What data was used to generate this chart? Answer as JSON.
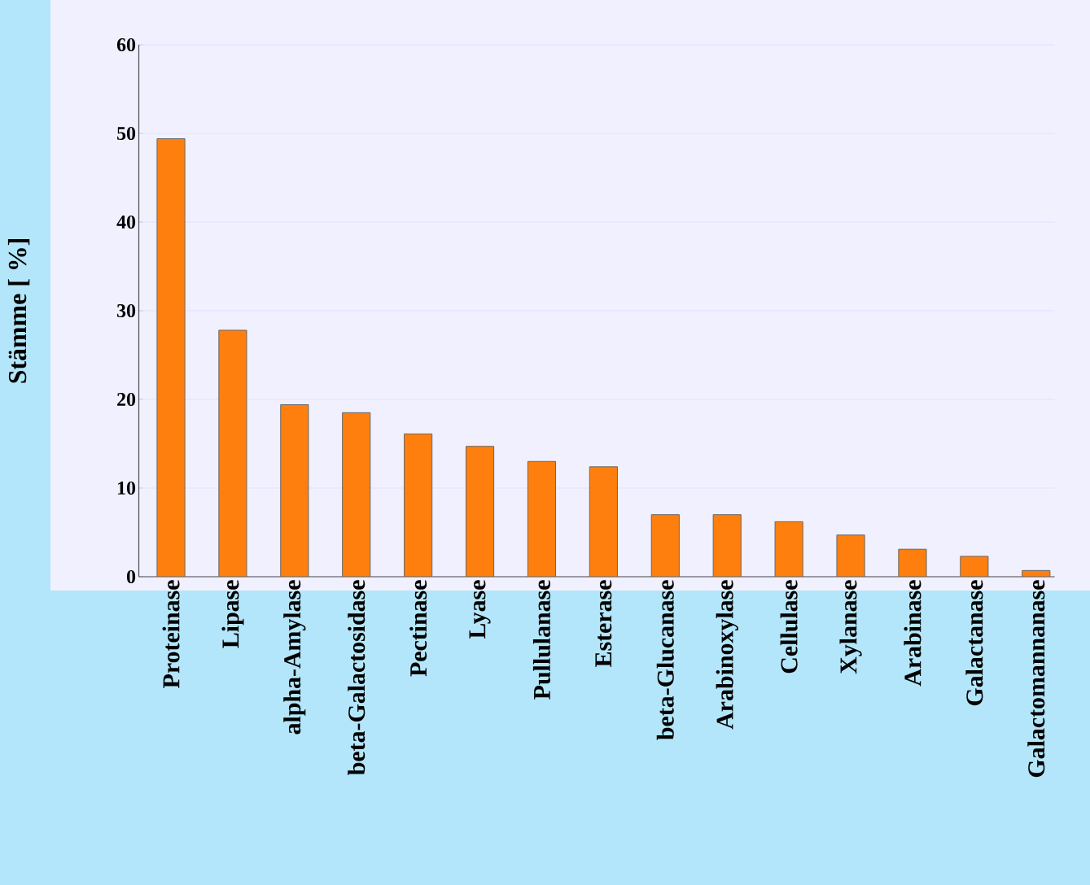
{
  "chart_data": {
    "type": "bar",
    "ylabel": "Stämme [ %]",
    "categories": [
      "Proteinase",
      "Lipase",
      "alpha-Amylase",
      "beta-Galactosidase",
      "Pectinase",
      "Lyase",
      "Pullulanase",
      "Esterase",
      "beta-Glucanase",
      "Arabinoxylase",
      "Cellulase",
      "Xylanase",
      "Arabinase",
      "Galactanase",
      "Galactomannanase"
    ],
    "values": [
      49.4,
      27.8,
      19.4,
      18.5,
      16.1,
      14.7,
      13.0,
      12.4,
      7.0,
      7.0,
      6.2,
      4.7,
      3.1,
      2.3,
      0.7
    ],
    "color": "#ff7f0e",
    "ylim": [
      0,
      60
    ],
    "yticks": [
      0,
      10,
      20,
      30,
      40,
      50,
      60
    ],
    "grid": "y"
  }
}
